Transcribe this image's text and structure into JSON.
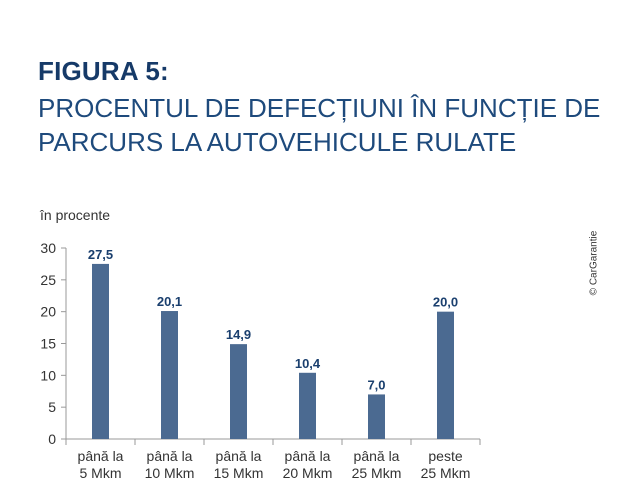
{
  "figure_label": "FIGURA 5:",
  "subtitle_lines": [
    "PROCENTUL DE DEFECȚIUNI ÎN FUNCȚIE DE",
    "PARCURS LA AUTOVEHICULE RULATE"
  ],
  "copyright": "© CarGarantie",
  "colors": {
    "bar": "#4b6a91",
    "title": "#163a68",
    "subtitle": "#1e4a7c",
    "data_label": "#1a3f6e",
    "axis": "#999999"
  },
  "chart_data": {
    "type": "bar",
    "ylabel": "în procente",
    "ylim": [
      0,
      30
    ],
    "yticks": [
      0,
      5,
      10,
      15,
      20,
      25,
      30
    ],
    "grid": false,
    "categories": [
      [
        "până la",
        "5 Mkm"
      ],
      [
        "până la",
        "10 Mkm"
      ],
      [
        "până la",
        "15 Mkm"
      ],
      [
        "până la",
        "20 Mkm"
      ],
      [
        "până la",
        "25 Mkm"
      ],
      [
        "peste",
        "25 Mkm"
      ]
    ],
    "values": [
      27.5,
      20.1,
      14.9,
      10.4,
      7.0,
      20.0
    ],
    "value_labels": [
      "27,5",
      "20,1",
      "14,9",
      "10,4",
      "7,0",
      "20,0"
    ]
  }
}
